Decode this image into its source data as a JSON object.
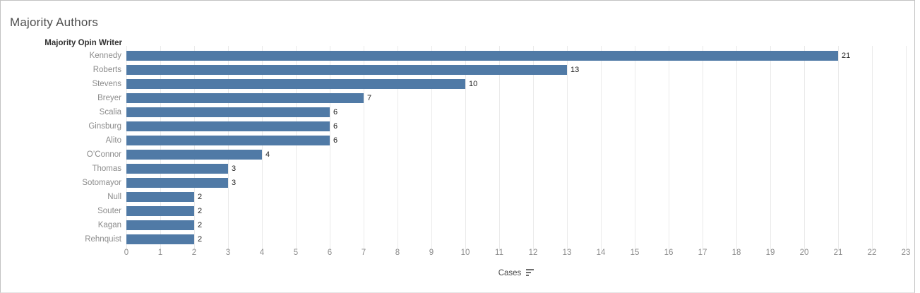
{
  "title": "Majority Authors",
  "colors": {
    "bar": "#507aa6",
    "gridline": "#eaeaea",
    "title_text": "#4e4e4e",
    "row_label_text": "#8c8c8c",
    "field_label_text": "#333333",
    "value_label_text": "#222222",
    "frame_border": "#c2c2c2"
  },
  "icons": {
    "axis_sort": "sort-descending"
  },
  "chart_data": {
    "type": "bar",
    "orientation": "horizontal",
    "title": "Majority Authors",
    "category_field_label": "Majority Opin Writer",
    "categories": [
      "Kennedy",
      "Roberts",
      "Stevens",
      "Breyer",
      "Scalia",
      "Ginsburg",
      "Alito",
      "O’Connor",
      "Thomas",
      "Sotomayor",
      "Null",
      "Souter",
      "Kagan",
      "Rehnquist"
    ],
    "values": [
      21,
      13,
      10,
      7,
      6,
      6,
      6,
      4,
      3,
      3,
      2,
      2,
      2,
      2
    ],
    "value_labels": [
      "21",
      "13",
      "10",
      "7",
      "6",
      "6",
      "6",
      "4",
      "3",
      "3",
      "2",
      "2",
      "2",
      "2"
    ],
    "xlabel": "Cases",
    "xlim": [
      0,
      23
    ],
    "x_ticks": [
      0,
      1,
      2,
      3,
      4,
      5,
      6,
      7,
      8,
      9,
      10,
      11,
      12,
      13,
      14,
      15,
      16,
      17,
      18,
      19,
      20,
      21,
      22,
      23
    ],
    "grid": true,
    "legend": "none",
    "sort_order": "descending",
    "bar_color": "#507aa6"
  }
}
